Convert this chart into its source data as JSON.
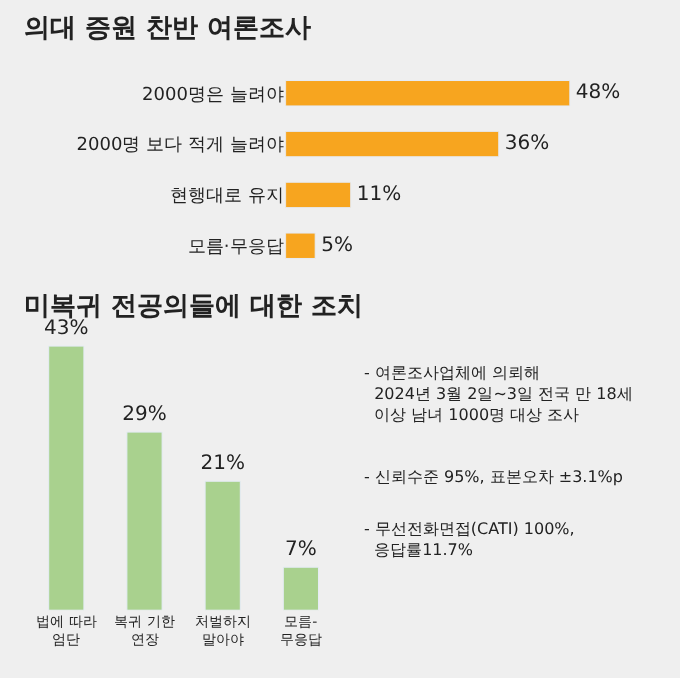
{
  "chart_data": [
    {
      "type": "bar",
      "orientation": "horizontal",
      "title": "의대 증원 찬반 여론조사",
      "categories": [
        "2000명은 늘려야",
        "2000명 보다 적게 늘려야",
        "현행대로 유지",
        "모름·무응답"
      ],
      "values": [
        48,
        36,
        11,
        5
      ],
      "value_labels": [
        "48%",
        "36%",
        "11%",
        "5%"
      ],
      "color": "#f7a51f",
      "tick_labels": "y",
      "grid": false,
      "legend": false
    },
    {
      "type": "bar",
      "title": "미복귀 전공의들에 대한 조치",
      "categories": [
        "법에 따라\n엄단",
        "복귀 기한\n연장",
        "처벌하지\n말아야",
        "모름-\n무응답"
      ],
      "values": [
        43,
        29,
        21,
        7
      ],
      "value_labels": [
        "43%",
        "29%",
        "21%",
        "7%"
      ],
      "color": "#a9d18e",
      "tick_labels": "x",
      "grid": false,
      "legend": false
    },
    {
      "type": "other",
      "annotations": [
        "- 여론조사업체에 의뢰해\n  2024년 3월 2일~3일 전국 만 18세\n  이상 남녀 1000명 대상 조사",
        "- 신뢰수준 95%, 표본오차 ±3.1%p",
        "- 무선전화면접(CATI) 100%,\n  응답률11.7%"
      ]
    }
  ]
}
